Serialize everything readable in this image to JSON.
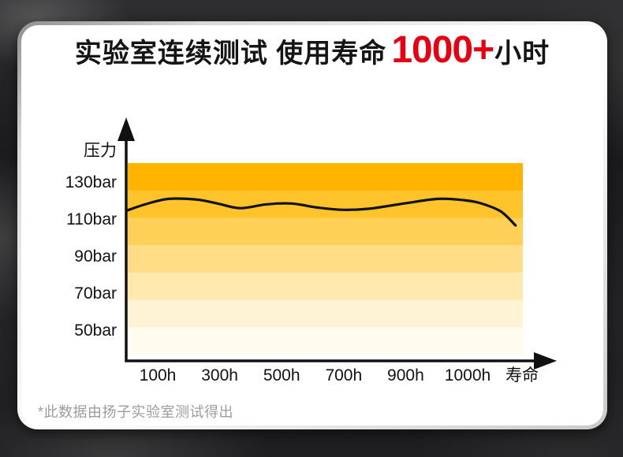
{
  "header": {
    "title_part1": "实验室连续测试 使用寿命",
    "title_highlight": "1000+",
    "title_part2": "小时",
    "highlight_color": "#e60012"
  },
  "footnote": "*此数据由扬子实验室测试得出",
  "chart_data": {
    "type": "line",
    "title": "实验室连续测试 使用寿命1000+小时",
    "subtitle": "压力-寿命曲线（横向渐变色带背景，无图例，无网格线）",
    "y_axis_title": "压力",
    "y_unit": "bar",
    "y_ticks": [
      130,
      110,
      90,
      70,
      50
    ],
    "ylim": [
      40,
      140
    ],
    "x_tick_labels": [
      "100h",
      "300h",
      "500h",
      "700h",
      "900h",
      "1000h",
      "寿命"
    ],
    "x_range_hours": [
      0,
      1080
    ],
    "band_colors": [
      "#ffb400",
      "#ffc42c",
      "#ffd058",
      "#ffdd86",
      "#ffe9ae",
      "#fff3d5",
      "#fffbee"
    ],
    "line_color": "#121212",
    "axis_color": "#111111",
    "series": [
      {
        "name": "压力",
        "unit": "bar",
        "points": [
          [
            0,
            115.2
          ],
          [
            50,
            118.5
          ],
          [
            112,
            121.3
          ],
          [
            190,
            120.9
          ],
          [
            250,
            118.6
          ],
          [
            308,
            116.3
          ],
          [
            380,
            118.4
          ],
          [
            448,
            118.8
          ],
          [
            520,
            116.6
          ],
          [
            588,
            115.4
          ],
          [
            660,
            116.0
          ],
          [
            760,
            119.0
          ],
          [
            849,
            121.3
          ],
          [
            920,
            120.6
          ],
          [
            966,
            118.9
          ],
          [
            1020,
            114.5
          ],
          [
            1060,
            107.0
          ]
        ]
      }
    ],
    "legend": "none",
    "grid": "off"
  }
}
